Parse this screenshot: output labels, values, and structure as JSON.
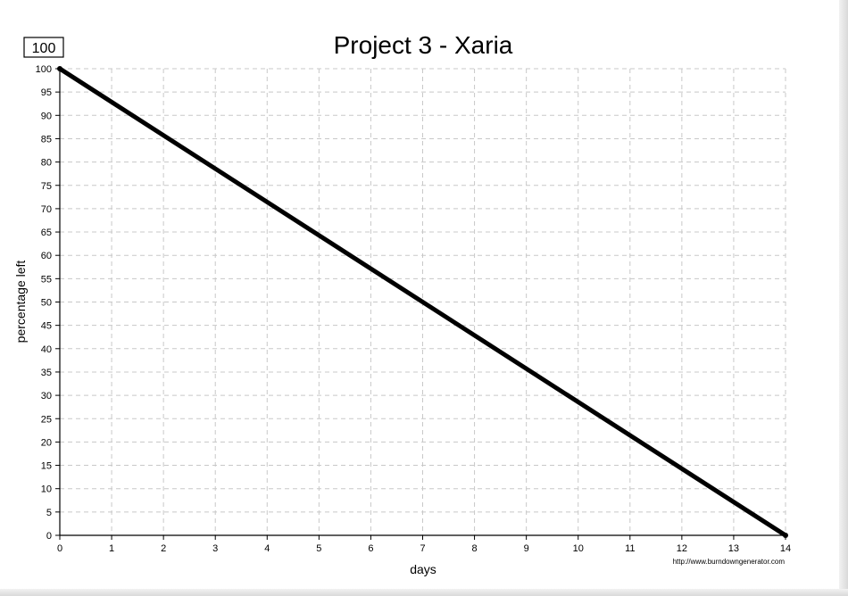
{
  "chart_data": {
    "type": "line",
    "title": "Project 3 - Xaria",
    "xlabel": "days",
    "ylabel": "percentage left",
    "start_value_label": "100",
    "credit": "http://www.burndowngenerator.com",
    "xlim": [
      0,
      14
    ],
    "ylim": [
      0,
      100
    ],
    "x_ticks": [
      0,
      1,
      2,
      3,
      4,
      5,
      6,
      7,
      8,
      9,
      10,
      11,
      12,
      13,
      14
    ],
    "y_ticks": [
      0,
      5,
      10,
      15,
      20,
      25,
      30,
      35,
      40,
      45,
      50,
      55,
      60,
      65,
      70,
      75,
      80,
      85,
      90,
      95,
      100
    ],
    "grid": true,
    "series": [
      {
        "x": [
          0,
          14
        ],
        "y": [
          100,
          0
        ],
        "color": "#000000"
      }
    ]
  }
}
